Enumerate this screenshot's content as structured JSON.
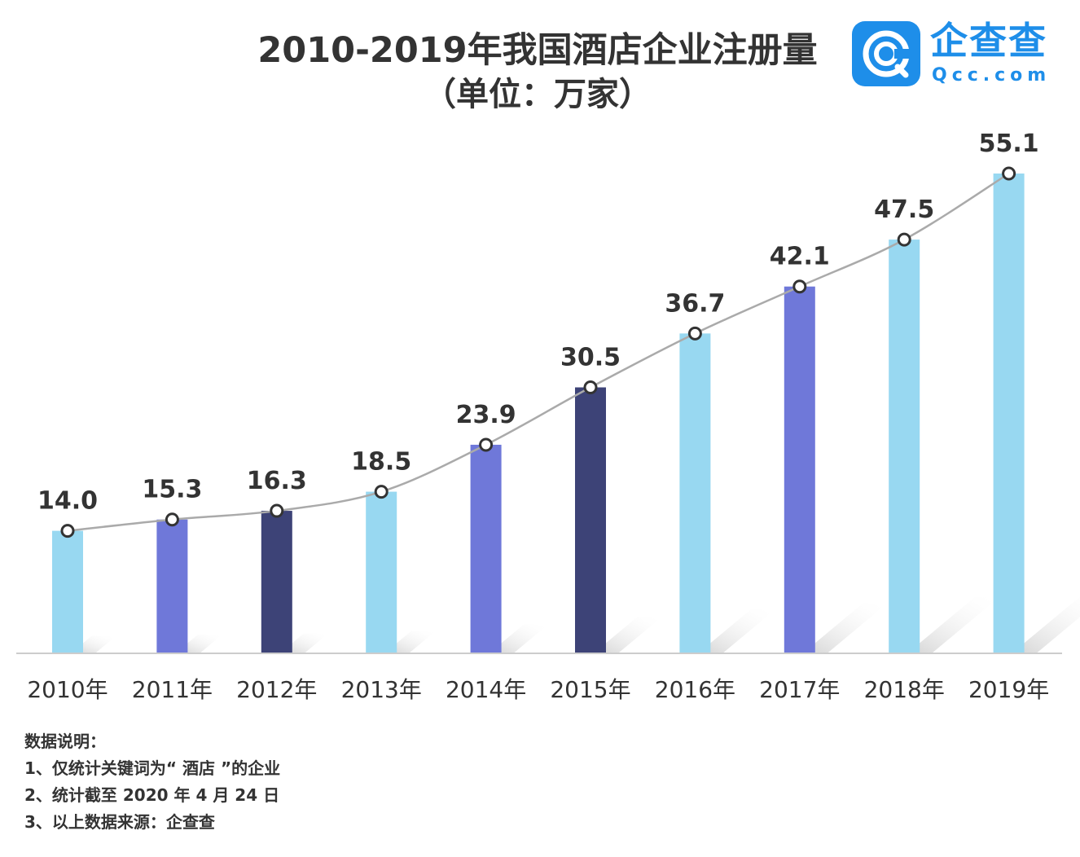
{
  "header": {
    "title": "2010-2019年我国酒店企业注册量",
    "unit": "（单位：万家）"
  },
  "logo": {
    "icon": "qcc-logo-icon",
    "name_cn": "企查查",
    "name_en": "Qcc.com",
    "color": "#1e8ee9"
  },
  "chart_data": {
    "type": "bar",
    "categories": [
      "2010年",
      "2011年",
      "2012年",
      "2013年",
      "2014年",
      "2015年",
      "2016年",
      "2017年",
      "2018年",
      "2019年"
    ],
    "values": [
      14.0,
      15.3,
      16.3,
      18.5,
      23.9,
      30.5,
      36.7,
      42.1,
      47.5,
      55.1
    ],
    "value_labels": [
      "14.0",
      "15.3",
      "16.3",
      "18.5",
      "23.9",
      "30.5",
      "36.7",
      "42.1",
      "47.5",
      "55.1"
    ],
    "bar_colors": [
      "#98d8f1",
      "#6f78d9",
      "#3d4377",
      "#98d8f1",
      "#6f78d9",
      "#3d4377",
      "#98d8f1",
      "#6f78d9",
      "#98d8f1",
      "#98d8f1"
    ],
    "overlay": "smoothed line with hollow circle markers through bar tops",
    "line_color": "#aaaaaa",
    "ylim": [
      0,
      55.1
    ],
    "grid": false,
    "legend": "none"
  },
  "notes": {
    "heading": "数据说明：",
    "items": [
      "1、仅统计关键词为“ 酒店 ”的企业",
      "2、统计截至 2020 年 4 月 24 日",
      "3、以上数据来源：企查查"
    ]
  }
}
